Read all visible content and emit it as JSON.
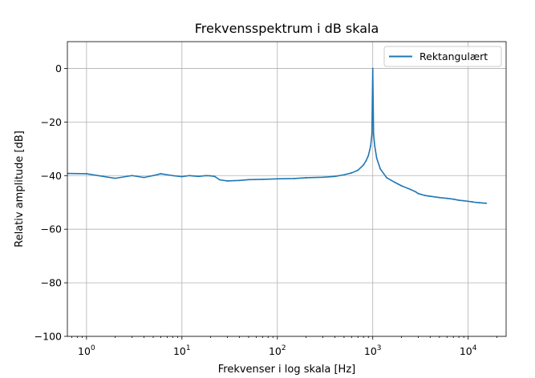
{
  "chart_data": {
    "type": "line",
    "title": "Frekvensspektrum i dB skala",
    "xlabel": "Frekvenser i log skala [Hz]",
    "ylabel": "Relativ amplitude [dB]",
    "x_scale": "log",
    "xlim": [
      0.63,
      25000
    ],
    "ylim": [
      -100,
      10
    ],
    "x_ticks": [
      {
        "value": 1,
        "base": "10",
        "exp": "0"
      },
      {
        "value": 10,
        "base": "10",
        "exp": "1"
      },
      {
        "value": 100,
        "base": "10",
        "exp": "2"
      },
      {
        "value": 1000,
        "base": "10",
        "exp": "3"
      },
      {
        "value": 10000,
        "base": "10",
        "exp": "4"
      }
    ],
    "y_ticks": [
      {
        "value": 0,
        "label": "0"
      },
      {
        "value": -20,
        "label": "−20"
      },
      {
        "value": -40,
        "label": "−40"
      },
      {
        "value": -60,
        "label": "−60"
      },
      {
        "value": -80,
        "label": "−80"
      },
      {
        "value": -100,
        "label": "−100"
      }
    ],
    "grid": true,
    "legend_position": "top-right",
    "line_color": "#1f77b4",
    "series": [
      {
        "name": "Rektangulært",
        "x": [
          0.63,
          1,
          1.5,
          2,
          3,
          4,
          5,
          6,
          8,
          10,
          12,
          15,
          18,
          20,
          22,
          25,
          30,
          40,
          50,
          70,
          100,
          150,
          200,
          300,
          400,
          500,
          600,
          700,
          800,
          850,
          900,
          950,
          980,
          1000,
          1020,
          1050,
          1100,
          1200,
          1400,
          1700,
          2000,
          2500,
          2800,
          3000,
          3500,
          4000,
          5000,
          6000,
          7000,
          8000,
          9000,
          10000,
          11000,
          12000,
          13000,
          14000,
          15000,
          15500
        ],
        "y": [
          -39.2,
          -39.3,
          -40.3,
          -41,
          -40,
          -40.7,
          -40,
          -39.3,
          -40,
          -40.4,
          -40,
          -40.3,
          -40,
          -40.1,
          -40.3,
          -41.6,
          -42,
          -41.8,
          -41.5,
          -41.4,
          -41.2,
          -41.1,
          -40.8,
          -40.6,
          -40.3,
          -39.7,
          -39,
          -38,
          -36,
          -34.5,
          -32.5,
          -29,
          -24.5,
          0,
          -24.5,
          -29,
          -33.5,
          -37.5,
          -40.8,
          -42.5,
          -43.8,
          -45.2,
          -46,
          -46.7,
          -47.4,
          -47.7,
          -48.2,
          -48.5,
          -48.8,
          -49.2,
          -49.4,
          -49.6,
          -49.8,
          -50,
          -50.1,
          -50.2,
          -50.3,
          -50.3
        ]
      }
    ]
  }
}
